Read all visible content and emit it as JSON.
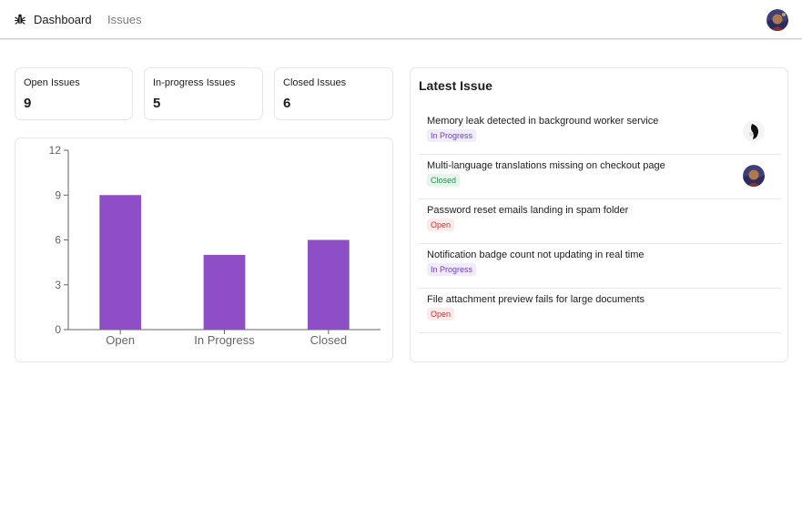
{
  "nav": {
    "logo_icon": "bug-icon",
    "dashboard_label": "Dashboard",
    "issues_label": "Issues"
  },
  "stats": [
    {
      "label": "Open Issues",
      "value": "9"
    },
    {
      "label": "In-progress Issues",
      "value": "5"
    },
    {
      "label": "Closed Issues",
      "value": "6"
    }
  ],
  "latest": {
    "title": "Latest Issue",
    "issues": [
      {
        "title": "Memory leak detected in background worker service",
        "status": "In Progress",
        "has_avatar": true
      },
      {
        "title": "Multi-language translations missing on checkout page",
        "status": "Closed",
        "has_avatar": true
      },
      {
        "title": "Password reset emails landing in spam folder",
        "status": "Open",
        "has_avatar": false
      },
      {
        "title": "Notification badge count not updating in real time",
        "status": "In Progress",
        "has_avatar": false
      },
      {
        "title": "File attachment preview fails for large documents",
        "status": "Open",
        "has_avatar": false
      }
    ]
  },
  "colors": {
    "bar": "#8e4ec6",
    "in_progress": "#6b3fc4",
    "closed": "#2a8a4f",
    "open": "#d62e2e"
  },
  "chart_data": {
    "type": "bar",
    "categories": [
      "Open",
      "In Progress",
      "Closed"
    ],
    "values": [
      9,
      5,
      6
    ],
    "yticks": [
      0,
      3,
      6,
      9,
      12
    ],
    "ylim": [
      0,
      12
    ],
    "title": "",
    "xlabel": "",
    "ylabel": "",
    "grid": false
  }
}
